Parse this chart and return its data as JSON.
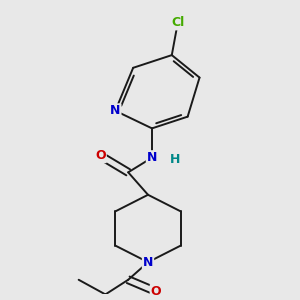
{
  "background_color": "#e8e8e8",
  "bond_color": "#1a1a1a",
  "atom_colors": {
    "N": "#0000cc",
    "O": "#cc0000",
    "Cl": "#44aa00",
    "H": "#008888"
  },
  "figsize": [
    3.0,
    3.0
  ],
  "dpi": 100
}
